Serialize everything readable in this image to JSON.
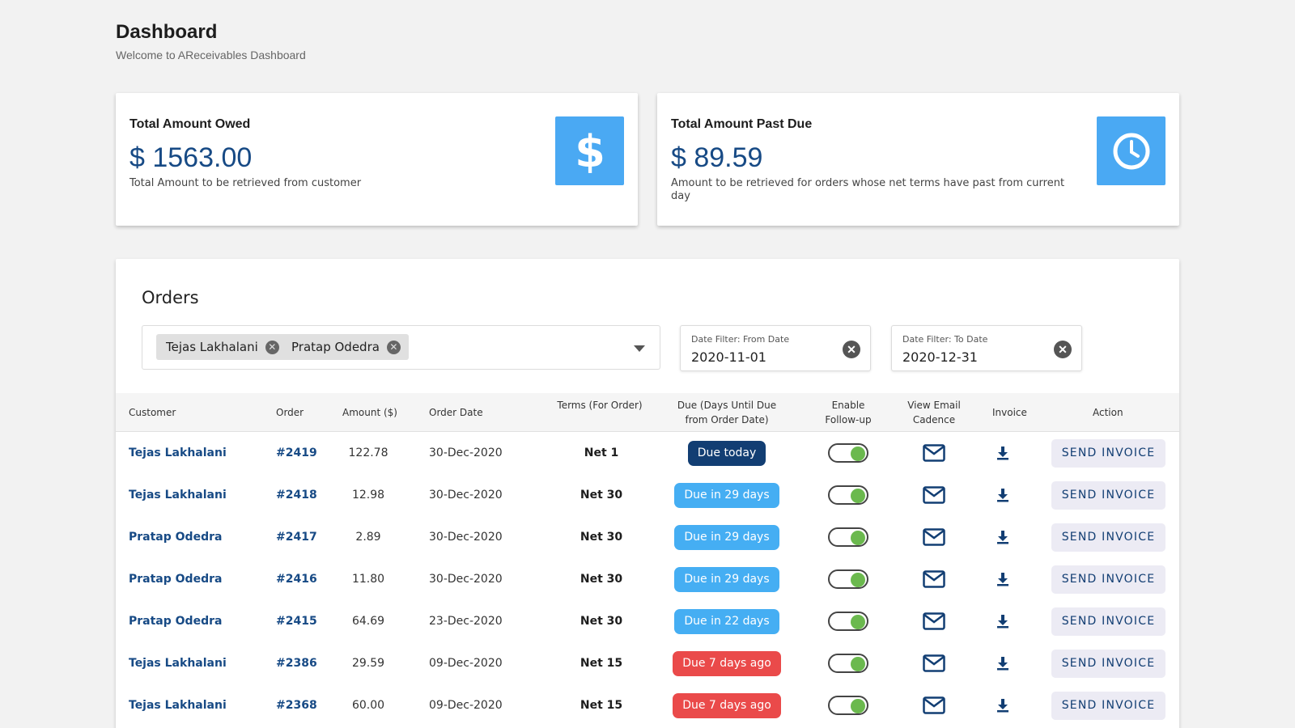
{
  "header": {
    "title": "Dashboard",
    "subtitle": "Welcome to AReceivables Dashboard"
  },
  "cards": [
    {
      "label": "Total Amount Owed",
      "value": "$ 1563.00",
      "description": "Total Amount to be retrieved from customer",
      "icon": "dollar-icon"
    },
    {
      "label": "Total Amount Past Due",
      "value": "$ 89.59",
      "description": "Amount to be retrieved for orders whose net terms have past from current day",
      "icon": "clock-icon"
    }
  ],
  "colors": {
    "accent": "#4aa9f3",
    "primary_text": "#174a85",
    "due_today": "#123e73",
    "due_future": "#45aef3",
    "overdue": "#ea4a4a",
    "toggle_on": "#6bb94e"
  },
  "orders": {
    "title": "Orders",
    "customer_filter": {
      "chips": [
        "Tejas Lakhalani",
        "Pratap Odedra"
      ]
    },
    "date_from": {
      "label": "Date Filter: From Date",
      "value": "2020-11-01"
    },
    "date_to": {
      "label": "Date Filter: To Date",
      "value": "2020-12-31"
    },
    "columns": {
      "customer": "Customer",
      "order": "Order",
      "amount": "Amount ($)",
      "order_date": "Order Date",
      "terms": "Terms (For Order)",
      "due": "Due (Days Until Due from Order Date)",
      "follow_up": "Enable Follow-up",
      "email_cadence": "View Email Cadence",
      "invoice": "Invoice",
      "action": "Action"
    },
    "rows": [
      {
        "customer": "Tejas Lakhalani",
        "order": "#2419",
        "amount": "122.78",
        "date": "30-Dec-2020",
        "terms": "Net 1",
        "due": "Due today",
        "status": "today",
        "follow_up": true,
        "action": "SEND INVOICE"
      },
      {
        "customer": "Tejas Lakhalani",
        "order": "#2418",
        "amount": "12.98",
        "date": "30-Dec-2020",
        "terms": "Net 30",
        "due": "Due in 29 days",
        "status": "future",
        "follow_up": true,
        "action": "SEND INVOICE"
      },
      {
        "customer": "Pratap Odedra",
        "order": "#2417",
        "amount": "2.89",
        "date": "30-Dec-2020",
        "terms": "Net 30",
        "due": "Due in 29 days",
        "status": "future",
        "follow_up": true,
        "action": "SEND INVOICE"
      },
      {
        "customer": "Pratap Odedra",
        "order": "#2416",
        "amount": "11.80",
        "date": "30-Dec-2020",
        "terms": "Net 30",
        "due": "Due in 29 days",
        "status": "future",
        "follow_up": true,
        "action": "SEND INVOICE"
      },
      {
        "customer": "Pratap Odedra",
        "order": "#2415",
        "amount": "64.69",
        "date": "23-Dec-2020",
        "terms": "Net 30",
        "due": "Due in 22 days",
        "status": "future",
        "follow_up": true,
        "action": "SEND INVOICE"
      },
      {
        "customer": "Tejas Lakhalani",
        "order": "#2386",
        "amount": "29.59",
        "date": "09-Dec-2020",
        "terms": "Net 15",
        "due": "Due 7 days ago",
        "status": "overdue",
        "follow_up": true,
        "action": "SEND INVOICE"
      },
      {
        "customer": "Tejas Lakhalani",
        "order": "#2368",
        "amount": "60.00",
        "date": "09-Dec-2020",
        "terms": "Net 15",
        "due": "Due 7 days ago",
        "status": "overdue",
        "follow_up": true,
        "action": "SEND INVOICE"
      }
    ]
  }
}
